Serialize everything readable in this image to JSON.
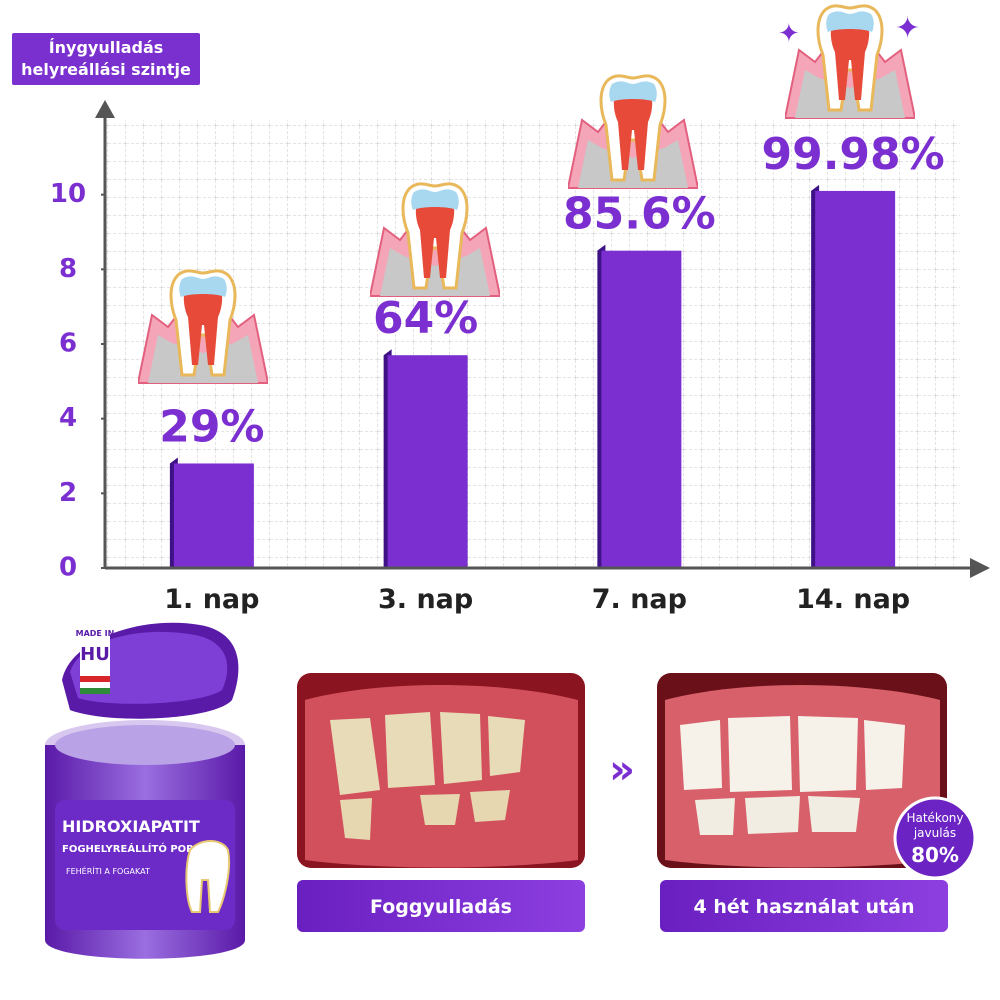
{
  "chart_data": {
    "type": "bar",
    "y_label": "Ínygyulladás helyreállási szintje",
    "categories": [
      "1. nap",
      "3. nap",
      "7. nap",
      "14. nap"
    ],
    "values": [
      2.8,
      5.7,
      8.5,
      10.1
    ],
    "annotations": [
      "29%",
      "64%",
      "85.6%",
      "99.98%"
    ],
    "color": "#7b2fd0",
    "ylim": [
      0,
      12
    ],
    "yticks": [
      0,
      2,
      4,
      6,
      8,
      10
    ],
    "grid": true
  },
  "product": {
    "origin_label": "MADE IN",
    "origin_country": "HU",
    "name": "HIDROXIAPATIT",
    "subtitle": "FOGHELYREÁLLÍTÓ POR",
    "claims": [
      "FEHÉRÍTI A FOGAKAT"
    ]
  },
  "comparison": {
    "before": "Foggyulladás",
    "after": "4 hét használat után",
    "badge_lines": [
      "Hatékony",
      "javulás"
    ],
    "badge_value": "80%"
  }
}
